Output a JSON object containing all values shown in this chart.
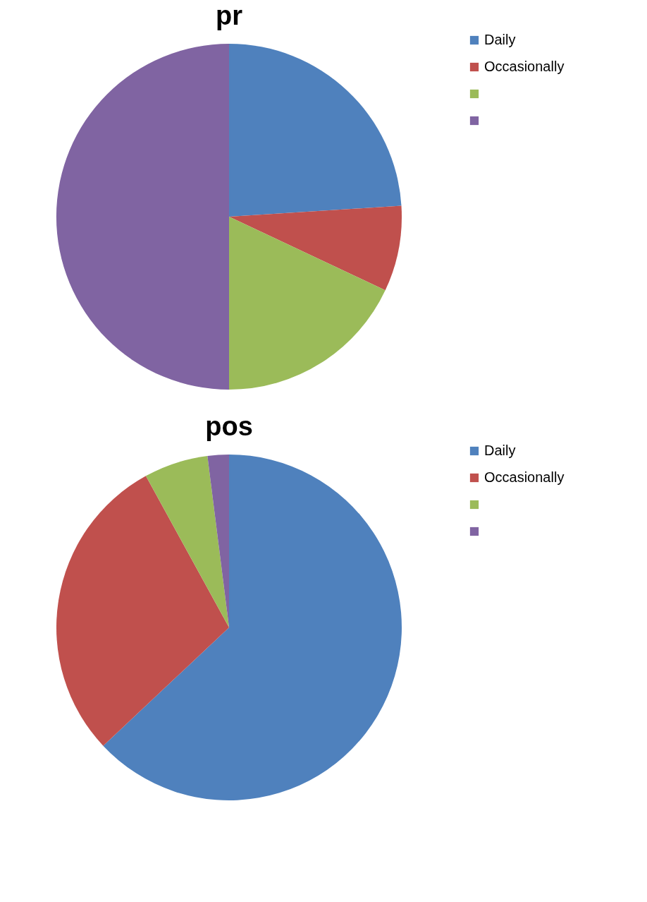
{
  "chart_data": [
    {
      "type": "pie",
      "title": "pr",
      "categories": [
        "Daily",
        "Occasionally",
        null,
        null
      ],
      "values": [
        24,
        8,
        18,
        50
      ],
      "colors": [
        "#4f81bd",
        "#c0504d",
        "#9bbb59",
        "#8064a2"
      ],
      "legend": "right"
    },
    {
      "type": "pie",
      "title": "pos",
      "categories": [
        "Daily",
        "Occasionally",
        null,
        null
      ],
      "values": [
        63,
        29,
        6,
        2
      ],
      "colors": [
        "#4f81bd",
        "#c0504d",
        "#9bbb59",
        "#8064a2"
      ],
      "legend": "right"
    }
  ]
}
